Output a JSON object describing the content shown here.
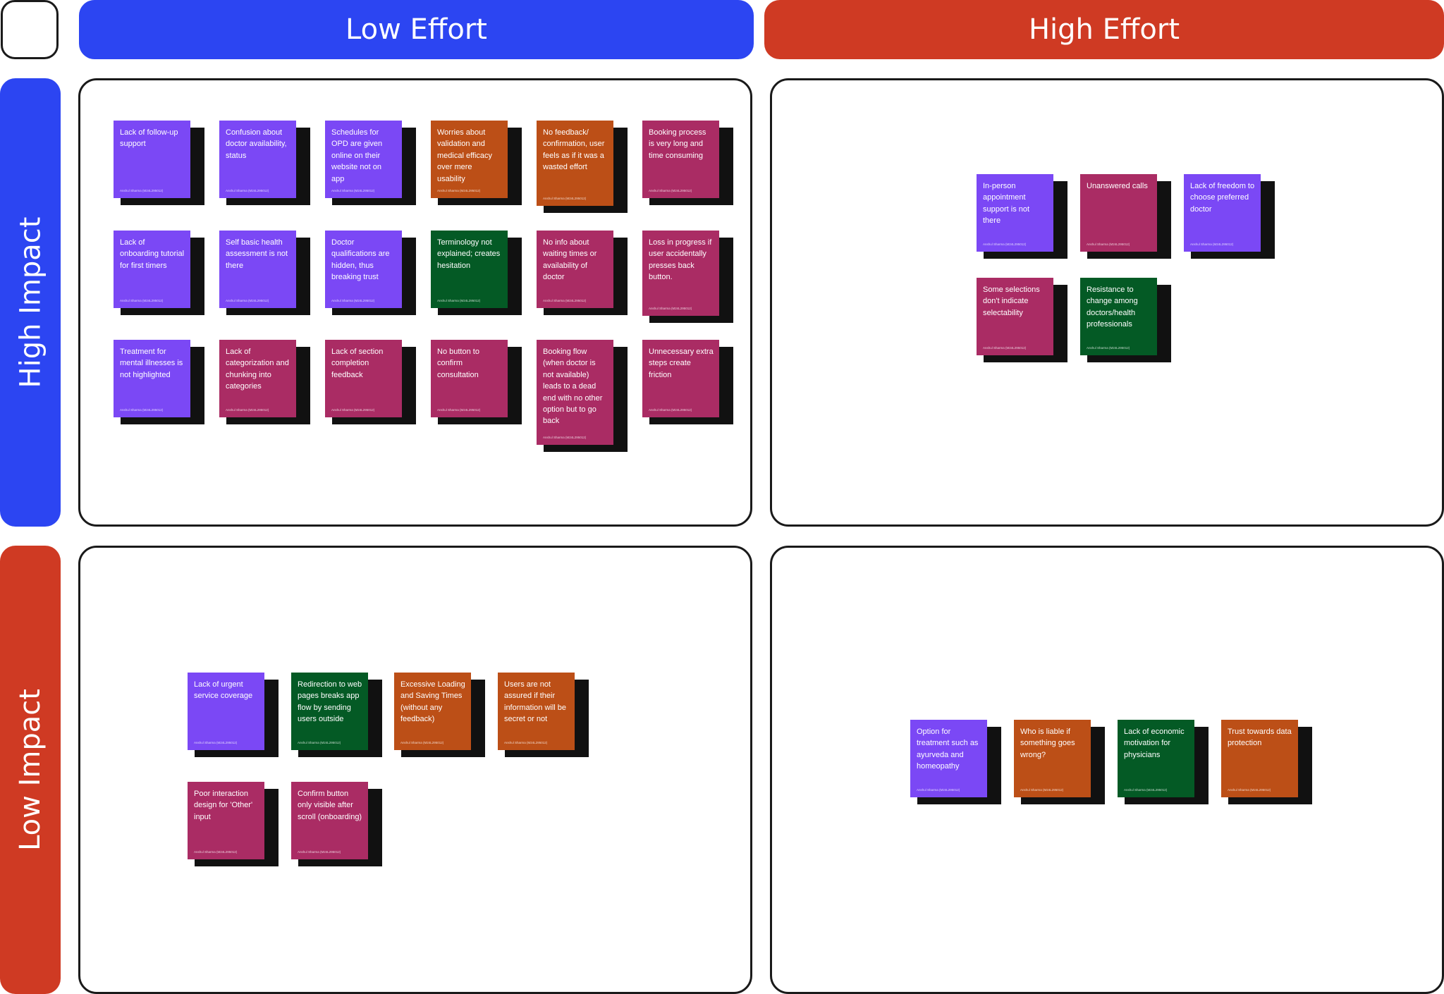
{
  "columns": {
    "low_effort": "Low Effort",
    "high_effort": "High Effort"
  },
  "rows": {
    "high_impact": "High Impact",
    "low_impact": "Low Impact"
  },
  "colors": {
    "blue": "#2c45f2",
    "red": "#cf3a23",
    "purple": "#7b48f5",
    "magenta": "#aa2c64",
    "orange": "#bc4f17",
    "green": "#045a25",
    "border": "#1a1a1a"
  },
  "notes": {
    "hi_lo": [
      {
        "text": "Lack of follow-up support",
        "author": "Anshul Sharma (M24L295012)",
        "color": "purple"
      },
      {
        "text": "Confusion about doctor availability, status",
        "author": "Anshul Sharma (M24L295012)",
        "color": "purple"
      },
      {
        "text": "Schedules for OPD are given online on their website not on app",
        "author": "Anshul Sharma (M24L295012)",
        "color": "purple"
      },
      {
        "text": "Worries about validation and medical efficacy over mere usability",
        "author": "Anshul Sharma (M24L295012)",
        "color": "orange"
      },
      {
        "text": "No feedback/ confirmation, user feels as if it was a wasted effort",
        "author": "Anshul Sharma (M24L295012)",
        "color": "orange"
      },
      {
        "text": "Booking process is very long and time consuming",
        "author": "Anshul Sharma (M24L295012)",
        "color": "magenta"
      },
      {
        "text": "Lack of onboarding tutorial for first timers",
        "author": "Anshul Sharma (M24L295012)",
        "color": "purple"
      },
      {
        "text": "Self basic health assessment is not there",
        "author": "Anshul Sharma (M24L295012)",
        "color": "purple"
      },
      {
        "text": "Doctor qualifications are hidden, thus breaking trust",
        "author": "Anshul Sharma (M24L295012)",
        "color": "purple"
      },
      {
        "text": "Terminology not explained; creates hesitation",
        "author": "Anshul Sharma (M24L295012)",
        "color": "green"
      },
      {
        "text": "No info about waiting times or availability of doctor",
        "author": "Anshul Sharma (M24L295012)",
        "color": "magenta"
      },
      {
        "text": "Loss in progress if user accidentally presses back button.",
        "author": "Anshul Sharma (M24L295012)",
        "color": "magenta"
      },
      {
        "text": "Treatment for mental illnesses is not highlighted",
        "author": "Anshul Sharma (M24L295012)",
        "color": "purple"
      },
      {
        "text": "Lack of categorization and chunking into categories",
        "author": "Anshul Sharma (M24L295012)",
        "color": "magenta"
      },
      {
        "text": "Lack of section completion feedback",
        "author": "Anshul Sharma (M24L295012)",
        "color": "magenta"
      },
      {
        "text": "No button to confirm consultation",
        "author": "Anshul Sharma (M24L295012)",
        "color": "magenta"
      },
      {
        "text": "Booking flow (when doctor is not available) leads to a dead end with no other option but to go back",
        "author": "Anshul Sharma (M24L295012)",
        "color": "magenta"
      },
      {
        "text": "Unnecessary extra steps create friction",
        "author": "Anshul Sharma (M24L295012)",
        "color": "magenta"
      }
    ],
    "hi_hi": [
      {
        "text": "In-person appointment support is not there",
        "author": "Anshul Sharma (M24L295012)",
        "color": "purple"
      },
      {
        "text": "Unanswered calls",
        "author": "Anshul Sharma (M24L295012)",
        "color": "magenta"
      },
      {
        "text": "Lack of freedom to choose preferred doctor",
        "author": "Anshul Sharma (M24L295012)",
        "color": "purple"
      },
      {
        "text": "Some selections don't indicate selectability",
        "author": "Anshul Sharma (M24L295012)",
        "color": "magenta"
      },
      {
        "text": "Resistance to change among doctors/health professionals",
        "author": "Anshul Sharma (M24L295012)",
        "color": "green"
      }
    ],
    "lo_lo": [
      {
        "text": "Lack of urgent service coverage",
        "author": "Anshul Sharma (M24L295012)",
        "color": "purple"
      },
      {
        "text": "Redirection to web pages breaks app flow by sending users outside",
        "author": "Anshul Sharma (M24L295012)",
        "color": "green"
      },
      {
        "text": "Excessive Loading and Saving Times (without any feedback)",
        "author": "Anshul Sharma (M24L295012)",
        "color": "orange"
      },
      {
        "text": "Users are not assured if their information will be secret or not",
        "author": "Anshul Sharma (M24L295012)",
        "color": "orange"
      },
      {
        "text": "Poor interaction design for 'Other' input",
        "author": "Anshul Sharma (M24L295012)",
        "color": "magenta"
      },
      {
        "text": "Confirm button only visible after scroll (onboarding)",
        "author": "Anshul Sharma (M24L295012)",
        "color": "magenta"
      }
    ],
    "lo_hi": [
      {
        "text": "Option for treatment such as ayurveda and homeopathy",
        "author": "Anshul Sharma (M24L295012)",
        "color": "purple"
      },
      {
        "text": "Who is liable if something goes wrong?",
        "author": "Anshul Sharma (M24L295012)",
        "color": "orange"
      },
      {
        "text": "Lack of economic motivation for physicians",
        "author": "Anshul Sharma (M24L295012)",
        "color": "green"
      },
      {
        "text": "Trust towards data protection",
        "author": "Anshul Sharma (M24L295012)",
        "color": "orange"
      }
    ]
  }
}
